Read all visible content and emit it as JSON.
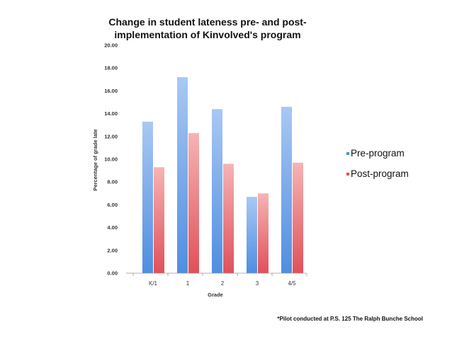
{
  "chart_data": {
    "type": "bar",
    "title_lines": [
      "Change in student lateness pre- and post-",
      "implementation of Kinvolved's program"
    ],
    "xlabel": "Grade",
    "ylabel": "Percentage of grade late",
    "categories": [
      "K/1",
      "1",
      "2",
      "3",
      "4/5"
    ],
    "series": [
      {
        "name": "Pre-program",
        "values": [
          13.3,
          17.2,
          14.4,
          6.7,
          14.6
        ]
      },
      {
        "name": "Post-program",
        "values": [
          9.3,
          12.3,
          9.6,
          7.0,
          9.7
        ]
      }
    ],
    "ylim": [
      0,
      20
    ],
    "yticks": [
      "0.00",
      "2.00",
      "4.00",
      "6.00",
      "8.00",
      "10.00",
      "12.00",
      "14.00",
      "16.00",
      "18.00",
      "20.00"
    ],
    "grid": false,
    "legend_position": "right",
    "colors": {
      "pre_top": "#a9c8f4",
      "pre_bottom": "#4f8ee0",
      "post_top": "#f6b4b4",
      "post_bottom": "#e0505a"
    },
    "footnote": "*Pilot conducted at P.S. 125 The Ralph Bunche School"
  }
}
